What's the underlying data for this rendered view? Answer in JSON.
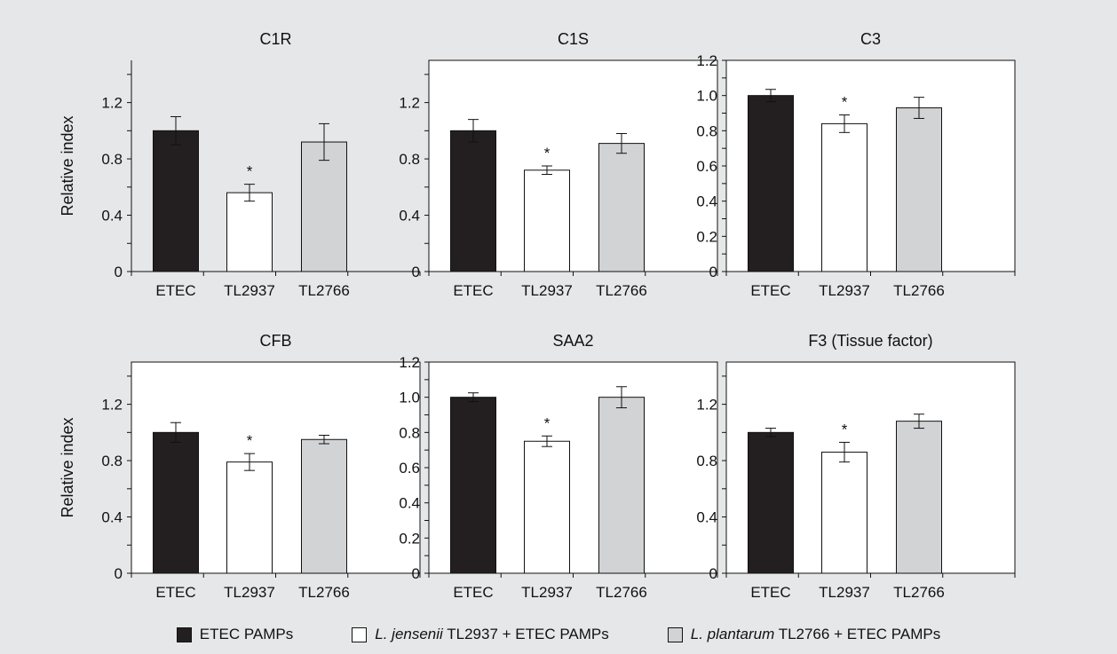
{
  "colors": {
    "background": "#e6e7e8",
    "etec": "#231f20",
    "tl2937": "#ffffff",
    "tl2766": "#d1d3d4",
    "stroke": "#111111"
  },
  "legend": [
    {
      "species": "",
      "label": "ETEC PAMPs",
      "color": "#231f20"
    },
    {
      "species": "L. jensenii",
      "label": "TL2937 + ETEC PAMPs",
      "color": "#ffffff"
    },
    {
      "species": "L. plantarum",
      "label": "TL2766 + ETEC PAMPs",
      "color": "#d1d3d4"
    }
  ],
  "chart_data": [
    {
      "type": "bar",
      "title": "C1R",
      "ylabel": "Relative index",
      "categories": [
        "ETEC",
        "TL2937",
        "TL2766"
      ],
      "values": [
        1.0,
        0.56,
        0.92
      ],
      "errors": [
        0.1,
        0.06,
        0.13
      ],
      "significance": [
        "",
        "*",
        ""
      ],
      "ylim": [
        0,
        1.5
      ],
      "yticks": [
        0,
        0.4,
        0.8,
        1.2
      ],
      "ytick_labels": [
        "0",
        "0.4",
        "0.8",
        "1.2"
      ],
      "box": false
    },
    {
      "type": "bar",
      "title": "C1S",
      "ylabel": "",
      "categories": [
        "ETEC",
        "TL2937",
        "TL2766"
      ],
      "values": [
        1.0,
        0.72,
        0.91
      ],
      "errors": [
        0.08,
        0.03,
        0.07
      ],
      "significance": [
        "",
        "*",
        ""
      ],
      "ylim": [
        0,
        1.5
      ],
      "yticks": [
        0,
        0.4,
        0.8,
        1.2
      ],
      "ytick_labels": [
        "0",
        "0.4",
        "0.8",
        "1.2"
      ],
      "box": true
    },
    {
      "type": "bar",
      "title": "C3",
      "ylabel": "",
      "categories": [
        "ETEC",
        "TL2937",
        "TL2766"
      ],
      "values": [
        1.0,
        0.84,
        0.93
      ],
      "errors": [
        0.035,
        0.05,
        0.06
      ],
      "significance": [
        "",
        "*",
        ""
      ],
      "ylim": [
        0,
        1.2
      ],
      "yticks": [
        0,
        0.2,
        0.4,
        0.6,
        0.8,
        1.0,
        1.2
      ],
      "ytick_labels": [
        "0",
        "0.2",
        "0.4",
        "0.6",
        "0.8",
        "1.0",
        "1.2"
      ],
      "box": true
    },
    {
      "type": "bar",
      "title": "CFB",
      "ylabel": "Relative index",
      "categories": [
        "ETEC",
        "TL2937",
        "TL2766"
      ],
      "values": [
        1.0,
        0.79,
        0.95
      ],
      "errors": [
        0.07,
        0.06,
        0.03
      ],
      "significance": [
        "",
        "*",
        ""
      ],
      "ylim": [
        0,
        1.5
      ],
      "yticks": [
        0,
        0.4,
        0.8,
        1.2
      ],
      "ytick_labels": [
        "0",
        "0.4",
        "0.8",
        "1.2"
      ],
      "box": true
    },
    {
      "type": "bar",
      "title": "SAA2",
      "ylabel": "",
      "categories": [
        "ETEC",
        "TL2937",
        "TL2766"
      ],
      "values": [
        1.0,
        0.75,
        1.0
      ],
      "errors": [
        0.025,
        0.03,
        0.06
      ],
      "significance": [
        "",
        "*",
        ""
      ],
      "ylim": [
        0,
        1.2
      ],
      "yticks": [
        0,
        0.2,
        0.4,
        0.6,
        0.8,
        1.0,
        1.2
      ],
      "ytick_labels": [
        "0",
        "0.2",
        "0.4",
        "0.6",
        "0.8",
        "1.0",
        "1.2"
      ],
      "box": true
    },
    {
      "type": "bar",
      "title": "F3 (Tissue factor)",
      "ylabel": "",
      "categories": [
        "ETEC",
        "TL2937",
        "TL2766"
      ],
      "values": [
        1.0,
        0.86,
        1.08
      ],
      "errors": [
        0.03,
        0.07,
        0.05
      ],
      "significance": [
        "",
        "*",
        ""
      ],
      "ylim": [
        0,
        1.5
      ],
      "yticks": [
        0,
        0.4,
        0.8,
        1.2
      ],
      "ytick_labels": [
        "0",
        "0.4",
        "0.8",
        "1.2"
      ],
      "box": true
    }
  ]
}
